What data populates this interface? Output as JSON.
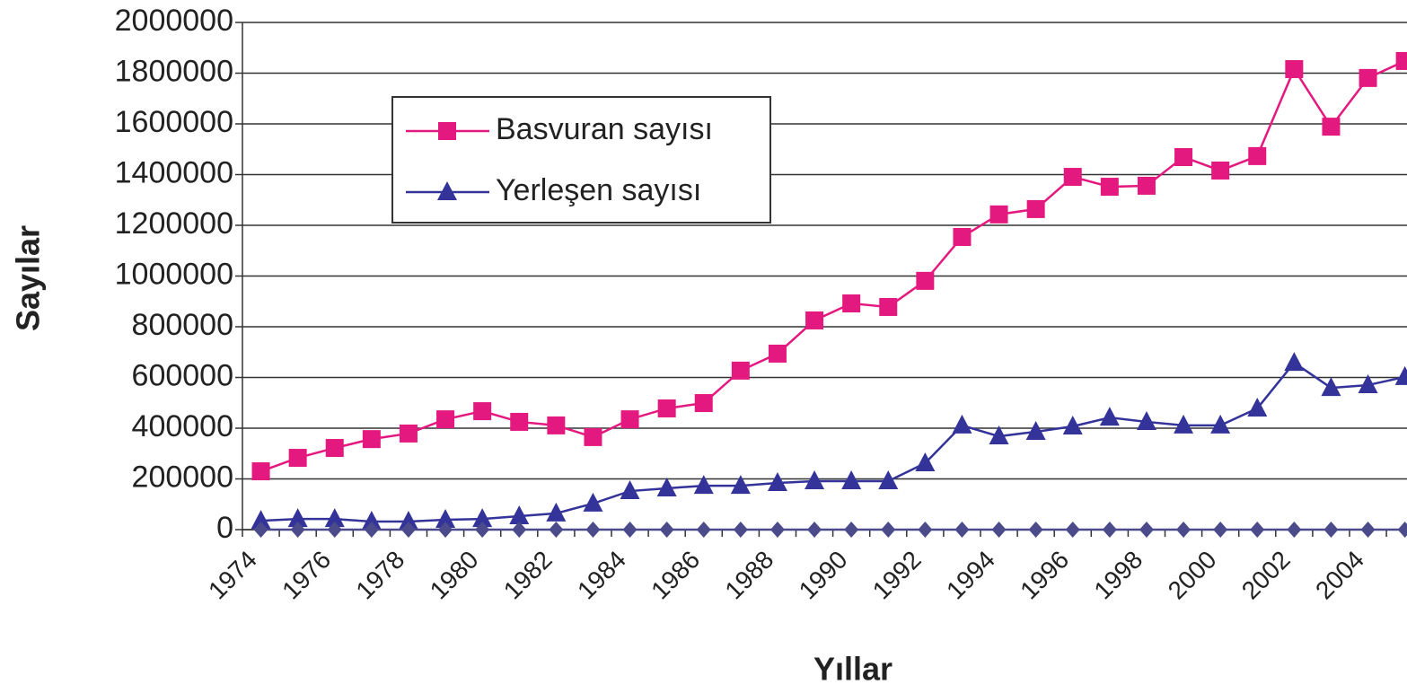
{
  "chart_data": {
    "type": "line",
    "x_label": "Yıllar",
    "y_label": "Sayılar",
    "categories": [
      "1974",
      null,
      "1976",
      null,
      "1978",
      null,
      "1980",
      null,
      "1982",
      null,
      "1984",
      null,
      "1986",
      null,
      "1988",
      null,
      "1990",
      null,
      "1992",
      null,
      "1994",
      null,
      "1996",
      null,
      "1998",
      null,
      "2000",
      null,
      "2002",
      null,
      "2004",
      null
    ],
    "series": [
      {
        "name": "Basvuran sayısı",
        "color": "#e4197f",
        "marker": "square",
        "values": [
          230000,
          283000,
          322000,
          357000,
          379000,
          435000,
          467000,
          425000,
          411000,
          365000,
          435000,
          478000,
          499000,
          627000,
          694000,
          825000,
          892000,
          878000,
          981000,
          1154000,
          1243000,
          1264000,
          1391000,
          1352000,
          1356000,
          1469000,
          1416000,
          1473000,
          1816000,
          1589000,
          1781000,
          1848000
        ]
      },
      {
        "name": "Yerleşen sayısı",
        "color": "#33339a",
        "marker": "triangle",
        "values": [
          35000,
          42000,
          42000,
          32000,
          32000,
          39000,
          42000,
          53000,
          64000,
          103000,
          152000,
          163000,
          173000,
          173000,
          184000,
          191000,
          191000,
          191000,
          262000,
          411000,
          368000,
          386000,
          407000,
          442000,
          425000,
          411000,
          411000,
          478000,
          658000,
          559000,
          570000,
          602000
        ]
      },
      {
        "color": "#4b4b8c",
        "marker": "diamond",
        "values": [
          0,
          0,
          0,
          0,
          0,
          0,
          0,
          0,
          0,
          0,
          0,
          0,
          0,
          0,
          0,
          0,
          0,
          0,
          0,
          0,
          0,
          0,
          0,
          0,
          0,
          0,
          0,
          0,
          0,
          0,
          0,
          0
        ]
      }
    ],
    "ylim": [
      0,
      2000000
    ],
    "yticks": [
      0,
      200000,
      400000,
      600000,
      800000,
      1000000,
      1200000,
      1400000,
      1600000,
      1800000,
      2000000
    ],
    "grid": true
  }
}
